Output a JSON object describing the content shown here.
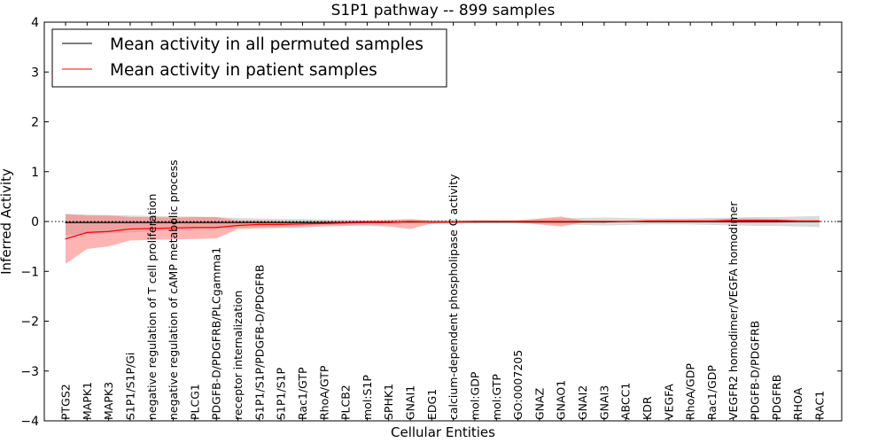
{
  "chart_data": {
    "type": "line",
    "title": "S1P1 pathway -- 899 samples",
    "xlabel": "Cellular Entities",
    "ylabel": "Inferred Activity",
    "ylim": [
      -4,
      4
    ],
    "yticks": [
      "4",
      "3",
      "2",
      "1",
      "0",
      "−1",
      "−2",
      "−3",
      "−4"
    ],
    "legend_position": "top-left",
    "categories": [
      "PTGS2",
      "MAPK1",
      "MAPK3",
      "S1P1/S1P/Gi",
      "negative regulation of T cell proliferation",
      "negative regulation of cAMP metabolic process",
      "PLCG1",
      "PDGFB-D/PDGFRB/PLCgamma1",
      "receptor internalization",
      "S1P1/S1P/PDGFB-D/PDGFRB",
      "S1P1/S1P",
      "Rac1/GTP",
      "RhoA/GTP",
      "PLCB2",
      "mol:S1P",
      "SPHK1",
      "GNAI1",
      "EDG1",
      "calcium-dependent phospholipase C activity",
      "mol:GDP",
      "mol:GTP",
      "GO:0007205",
      "GNAZ",
      "GNAO1",
      "GNAI2",
      "GNAI3",
      "ABCC1",
      "KDR",
      "VEGFA",
      "RhoA/GDP",
      "Rac1/GDP",
      "VEGFR2 homodimer/VEGFA homodimer",
      "PDGFB-D/PDGFRB",
      "PDGFRB",
      "RHOA",
      "RAC1"
    ],
    "series": [
      {
        "name": "Mean activity in all permuted samples",
        "color": "#000000",
        "values": [
          -0.02,
          -0.02,
          -0.02,
          -0.02,
          -0.02,
          -0.02,
          -0.02,
          -0.02,
          -0.02,
          -0.02,
          -0.02,
          -0.02,
          -0.02,
          -0.02,
          -0.01,
          -0.01,
          -0.01,
          -0.01,
          -0.01,
          -0.01,
          -0.01,
          -0.01,
          -0.01,
          -0.01,
          -0.01,
          -0.01,
          0,
          0,
          0,
          0,
          0,
          0,
          0,
          0,
          0,
          0
        ],
        "band_low": [
          -0.28,
          -0.26,
          -0.24,
          -0.22,
          -0.2,
          -0.18,
          -0.16,
          -0.15,
          -0.13,
          -0.11,
          -0.1,
          -0.09,
          -0.08,
          -0.07,
          -0.06,
          -0.06,
          -0.05,
          -0.05,
          -0.04,
          -0.04,
          -0.04,
          -0.04,
          -0.05,
          -0.06,
          -0.07,
          -0.08,
          -0.07,
          -0.06,
          -0.06,
          -0.06,
          -0.07,
          -0.08,
          -0.09,
          -0.09,
          -0.1,
          -0.11
        ],
        "band_high": [
          0.15,
          0.14,
          0.13,
          0.12,
          0.11,
          0.1,
          0.1,
          0.09,
          0.07,
          0.06,
          0.05,
          0.05,
          0.04,
          0.04,
          0.03,
          0.03,
          0.03,
          0.03,
          0.03,
          0.03,
          0.03,
          0.03,
          0.05,
          0.06,
          0.07,
          0.08,
          0.07,
          0.06,
          0.06,
          0.06,
          0.07,
          0.08,
          0.09,
          0.09,
          0.1,
          0.11
        ]
      },
      {
        "name": "Mean activity in patient samples",
        "color": "#ff0000",
        "band_color": "#ff6a6a",
        "values": [
          -0.35,
          -0.22,
          -0.2,
          -0.15,
          -0.14,
          -0.13,
          -0.12,
          -0.12,
          -0.08,
          -0.06,
          -0.06,
          -0.05,
          -0.04,
          -0.03,
          -0.02,
          -0.02,
          0,
          -0.01,
          -0.01,
          0,
          0,
          0,
          0,
          0,
          0,
          0,
          0,
          0.01,
          0.01,
          0.01,
          0.01,
          0.02,
          0.02,
          0.02,
          0.01,
          0.01
        ],
        "band_low": [
          -0.85,
          -0.55,
          -0.5,
          -0.38,
          -0.37,
          -0.36,
          -0.35,
          -0.34,
          -0.15,
          -0.14,
          -0.13,
          -0.12,
          -0.1,
          -0.09,
          -0.08,
          -0.1,
          -0.15,
          -0.04,
          -0.03,
          -0.02,
          -0.02,
          -0.02,
          -0.06,
          -0.1,
          -0.02,
          -0.02,
          -0.01,
          -0.02,
          -0.02,
          -0.02,
          -0.02,
          -0.03,
          -0.03,
          -0.03,
          -0.01,
          -0.01
        ],
        "band_high": [
          0.15,
          0.12,
          0.12,
          0.09,
          0.09,
          0.08,
          0.09,
          0.09,
          0.02,
          0.02,
          0.01,
          0.01,
          0.01,
          0.01,
          0.02,
          0.03,
          0.05,
          0.02,
          0.02,
          0.02,
          0.02,
          0.02,
          0.06,
          0.1,
          0.02,
          0.02,
          0.01,
          0.03,
          0.04,
          0.04,
          0.04,
          0.06,
          0.06,
          0.05,
          0.03,
          0.03
        ]
      }
    ],
    "reference_line": {
      "y": 0,
      "style": "dotted"
    }
  }
}
